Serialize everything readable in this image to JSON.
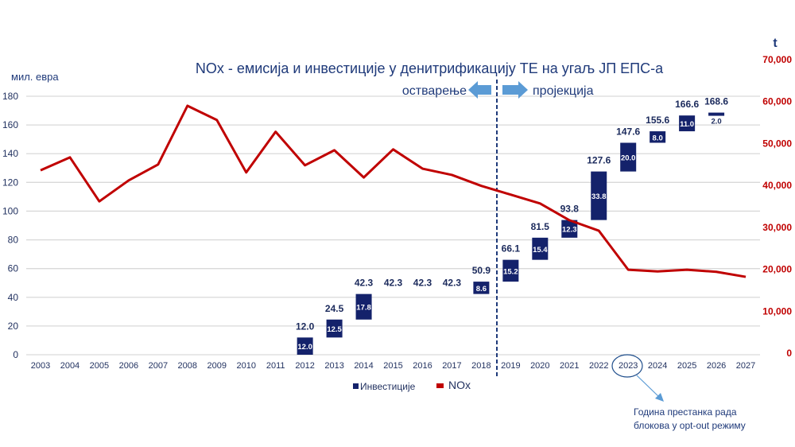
{
  "chart_data": {
    "type": "waterfall-bar+line",
    "title": "NOx - емисија и инвестиције у денитрификацију ТЕ на угаљ ЈП ЕПС-а",
    "ylabel_left": "мил. евра",
    "ylabel_right": "t",
    "ylim_left": [
      0,
      180
    ],
    "ylim_right": [
      0,
      70000
    ],
    "yticks_left": [
      "0",
      "20",
      "40",
      "60",
      "80",
      "100",
      "120",
      "140",
      "160",
      "180"
    ],
    "yticks_right": [
      "0",
      "10,000",
      "20,000",
      "30,000",
      "40,000",
      "50,000",
      "60,000",
      "70,000"
    ],
    "categories": [
      "2003",
      "2004",
      "2005",
      "2006",
      "2007",
      "2008",
      "2009",
      "2010",
      "2011",
      "2012",
      "2013",
      "2014",
      "2015",
      "2016",
      "2017",
      "2018",
      "2019",
      "2020",
      "2021",
      "2022",
      "2023",
      "2024",
      "2025",
      "2026",
      "2027"
    ],
    "grid": true,
    "legend_position": "bottom",
    "phase_labels": {
      "past": "остварење",
      "future": "пројекција",
      "split_between": [
        "2018",
        "2019"
      ]
    },
    "series": [
      {
        "name": "Инвестиције",
        "color": "#14226b",
        "axis": "left",
        "kind": "waterfall",
        "points": [
          {
            "year": "2012",
            "start": 0,
            "end": 12.0,
            "increment": "12.0",
            "total": "12.0"
          },
          {
            "year": "2013",
            "start": 12.0,
            "end": 24.5,
            "increment": "12.5",
            "total": "24.5"
          },
          {
            "year": "2014",
            "start": 24.5,
            "end": 42.3,
            "increment": "17.8",
            "total": "42.3"
          },
          {
            "year": "2015",
            "start": 42.3,
            "end": 42.3,
            "increment": null,
            "total": "42.3"
          },
          {
            "year": "2016",
            "start": 42.3,
            "end": 42.3,
            "increment": null,
            "total": "42.3"
          },
          {
            "year": "2017",
            "start": 42.3,
            "end": 42.3,
            "increment": null,
            "total": "42.3"
          },
          {
            "year": "2018",
            "start": 42.3,
            "end": 50.9,
            "increment": "8.6",
            "total": "50.9"
          },
          {
            "year": "2019",
            "start": 50.9,
            "end": 66.1,
            "increment": "15.2",
            "total": "66.1"
          },
          {
            "year": "2020",
            "start": 66.1,
            "end": 81.5,
            "increment": "15.4",
            "total": "81.5"
          },
          {
            "year": "2021",
            "start": 81.5,
            "end": 93.8,
            "increment": "12.3",
            "total": "93.8"
          },
          {
            "year": "2022",
            "start": 93.8,
            "end": 127.6,
            "increment": "33.8",
            "total": "127.6"
          },
          {
            "year": "2023",
            "start": 127.6,
            "end": 147.6,
            "increment": "20.0",
            "total": "147.6"
          },
          {
            "year": "2024",
            "start": 147.6,
            "end": 155.6,
            "increment": "8.0",
            "total": "155.6"
          },
          {
            "year": "2025",
            "start": 155.6,
            "end": 166.6,
            "increment": "11.0",
            "total": "166.6"
          },
          {
            "year": "2026",
            "start": 166.6,
            "end": 168.6,
            "increment": "2.0",
            "total": "168.6"
          }
        ]
      },
      {
        "name": "NOx",
        "color": "#c00000",
        "axis": "right",
        "kind": "line",
        "values": [
          43600,
          46700,
          36200,
          41200,
          45000,
          59000,
          55600,
          43100,
          52800,
          44800,
          48400,
          41900,
          48600,
          44000,
          42500,
          39900,
          37800,
          35700,
          31700,
          29200,
          19900,
          19500,
          19900,
          19400,
          18200
        ]
      }
    ],
    "annotation": {
      "target": "2023",
      "lines": [
        "Година престанка рада",
        "блокова у opt-out режиму"
      ],
      "color": "#5b9bd5"
    },
    "colors": {
      "text": "#1f3a7a",
      "grid": "#d9d9d9",
      "arrow": "#5b9bd5",
      "divider": "#1f3a7a"
    }
  }
}
